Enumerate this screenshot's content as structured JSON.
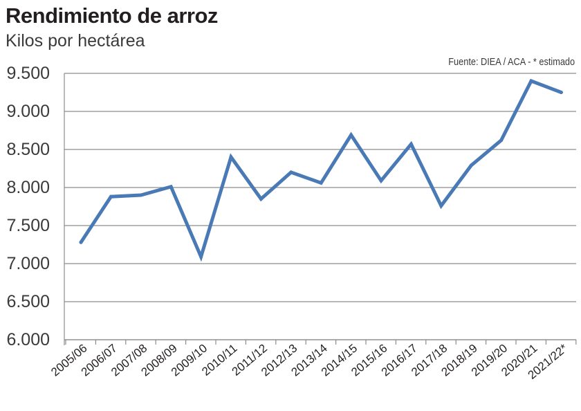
{
  "header": {
    "title": "Rendimiento de arroz",
    "subtitle": "Kilos por hectárea",
    "source": "Fuente: DIEA / ACA - * estimado"
  },
  "chart_data": {
    "type": "line",
    "title": "Rendimiento de arroz",
    "subtitle": "Kilos por hectárea",
    "xlabel": "",
    "ylabel": "",
    "ylim": [
      6000,
      9500
    ],
    "yticks": [
      6000,
      6500,
      7000,
      7500,
      8000,
      8500,
      9000,
      9500
    ],
    "ytick_labels": [
      "6.000",
      "6.500",
      "7.000",
      "7.500",
      "8.000",
      "8.500",
      "9.000",
      "9.500"
    ],
    "grid": "horizontal",
    "line_color": "#4a7ab5",
    "categories": [
      "2005/06",
      "2006/07",
      "2007/08",
      "2008/09",
      "2009/10",
      "2010/11",
      "2011/12",
      "2012/13",
      "2013/14",
      "2014/15",
      "2015/16",
      "2016/17",
      "2017/18",
      "2018/19",
      "2019/20",
      "2020/21",
      "2021/22*"
    ],
    "series": [
      {
        "values": [
          7280,
          7880,
          7900,
          8010,
          7090,
          8400,
          7850,
          8200,
          8060,
          8690,
          8090,
          8570,
          7760,
          8290,
          8620,
          9400,
          9250
        ]
      }
    ]
  }
}
